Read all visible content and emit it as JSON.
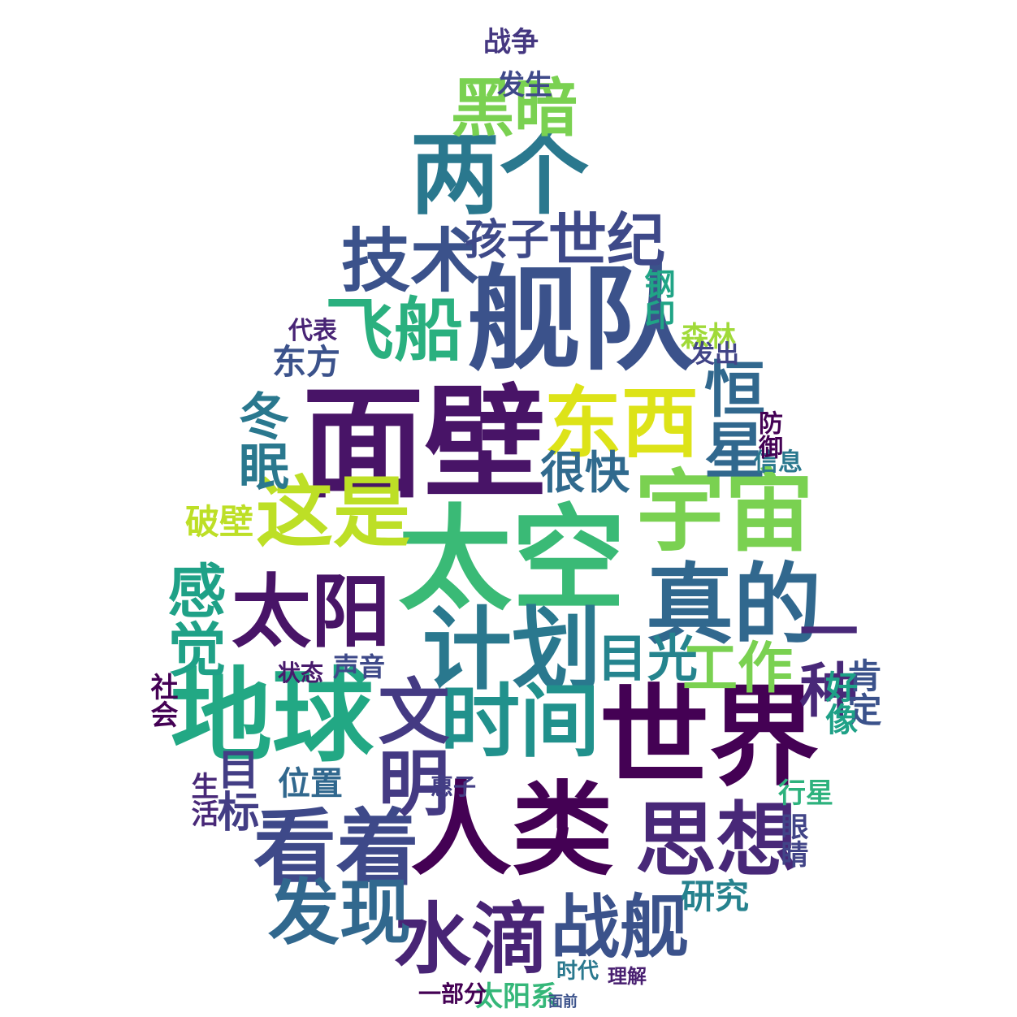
{
  "words": [
    {
      "text": "面壁",
      "color": "#481467"
    },
    {
      "text": "太空",
      "color": "#3aba76"
    },
    {
      "text": "舰队",
      "color": "#3b528b"
    },
    {
      "text": "人类",
      "color": "#440154"
    },
    {
      "text": "世界",
      "color": "#440154"
    },
    {
      "text": "地球",
      "color": "#22a884"
    },
    {
      "text": "两个",
      "color": "#2a788e"
    },
    {
      "text": "计划",
      "color": "#2a788e"
    },
    {
      "text": "宇宙",
      "color": "#7ad151"
    },
    {
      "text": "东西",
      "color": "#dde318"
    },
    {
      "text": "真的",
      "color": "#31688e"
    },
    {
      "text": "看着",
      "color": "#3e4989"
    },
    {
      "text": "思想",
      "color": "#482878"
    },
    {
      "text": "水滴",
      "color": "#482475"
    },
    {
      "text": "时间",
      "color": "#21918c"
    },
    {
      "text": "文明",
      "color": "#443a83"
    },
    {
      "text": "太阳",
      "color": "#481467"
    },
    {
      "text": "这是",
      "color": "#bddf26"
    },
    {
      "text": "技术",
      "color": "#3b528b"
    },
    {
      "text": "飞船",
      "color": "#2ab07f"
    },
    {
      "text": "黑暗",
      "color": "#7ad151"
    },
    {
      "text": "战舰",
      "color": "#3b528b"
    },
    {
      "text": "发现",
      "color": "#31688e"
    },
    {
      "text": "感觉",
      "color": "#1fa187"
    },
    {
      "text": "一种",
      "color": "#482878"
    },
    {
      "text": "恒星",
      "color": "#31688e"
    },
    {
      "text": "世纪",
      "color": "#3e4989"
    },
    {
      "text": "工作",
      "color": "#7ad151"
    },
    {
      "text": "目光",
      "color": "#25848e"
    },
    {
      "text": "孩子",
      "color": "#3e4989"
    },
    {
      "text": "冬眠",
      "color": "#2a788e"
    },
    {
      "text": "很快",
      "color": "#306a8e"
    },
    {
      "text": "目标",
      "color": "#433e85"
    },
    {
      "text": "东方",
      "color": "#3b528b"
    },
    {
      "text": "破壁",
      "color": "#bddf26"
    },
    {
      "text": "研究",
      "color": "#26828e"
    },
    {
      "text": "太阳系",
      "color": "#35b779"
    },
    {
      "text": "位置",
      "color": "#31688e"
    },
    {
      "text": "生活",
      "color": "#482878"
    },
    {
      "text": "战争",
      "color": "#453781"
    },
    {
      "text": "发生",
      "color": "#3e4989"
    },
    {
      "text": "代表",
      "color": "#482475"
    },
    {
      "text": "钢印",
      "color": "#20a486"
    },
    {
      "text": "森林",
      "color": "#a0da39"
    },
    {
      "text": "声音",
      "color": "#3e4989"
    },
    {
      "text": "状态",
      "color": "#481a6c"
    },
    {
      "text": "社会",
      "color": "#440154"
    },
    {
      "text": "信息",
      "color": "#2a788e"
    },
    {
      "text": "肯定",
      "color": "#3b528b"
    },
    {
      "text": "行星",
      "color": "#2db27d"
    },
    {
      "text": "眼睛",
      "color": "#414487"
    },
    {
      "text": "发出",
      "color": "#414487"
    },
    {
      "text": "防御",
      "color": "#440154"
    },
    {
      "text": "好像",
      "color": "#1fa187"
    },
    {
      "text": "惠子",
      "color": "#433e85"
    },
    {
      "text": "时代",
      "color": "#2a788e"
    },
    {
      "text": "理解",
      "color": "#481f70"
    },
    {
      "text": "面前",
      "color": "#3b528b"
    },
    {
      "text": "一部分",
      "color": "#440154"
    }
  ]
}
